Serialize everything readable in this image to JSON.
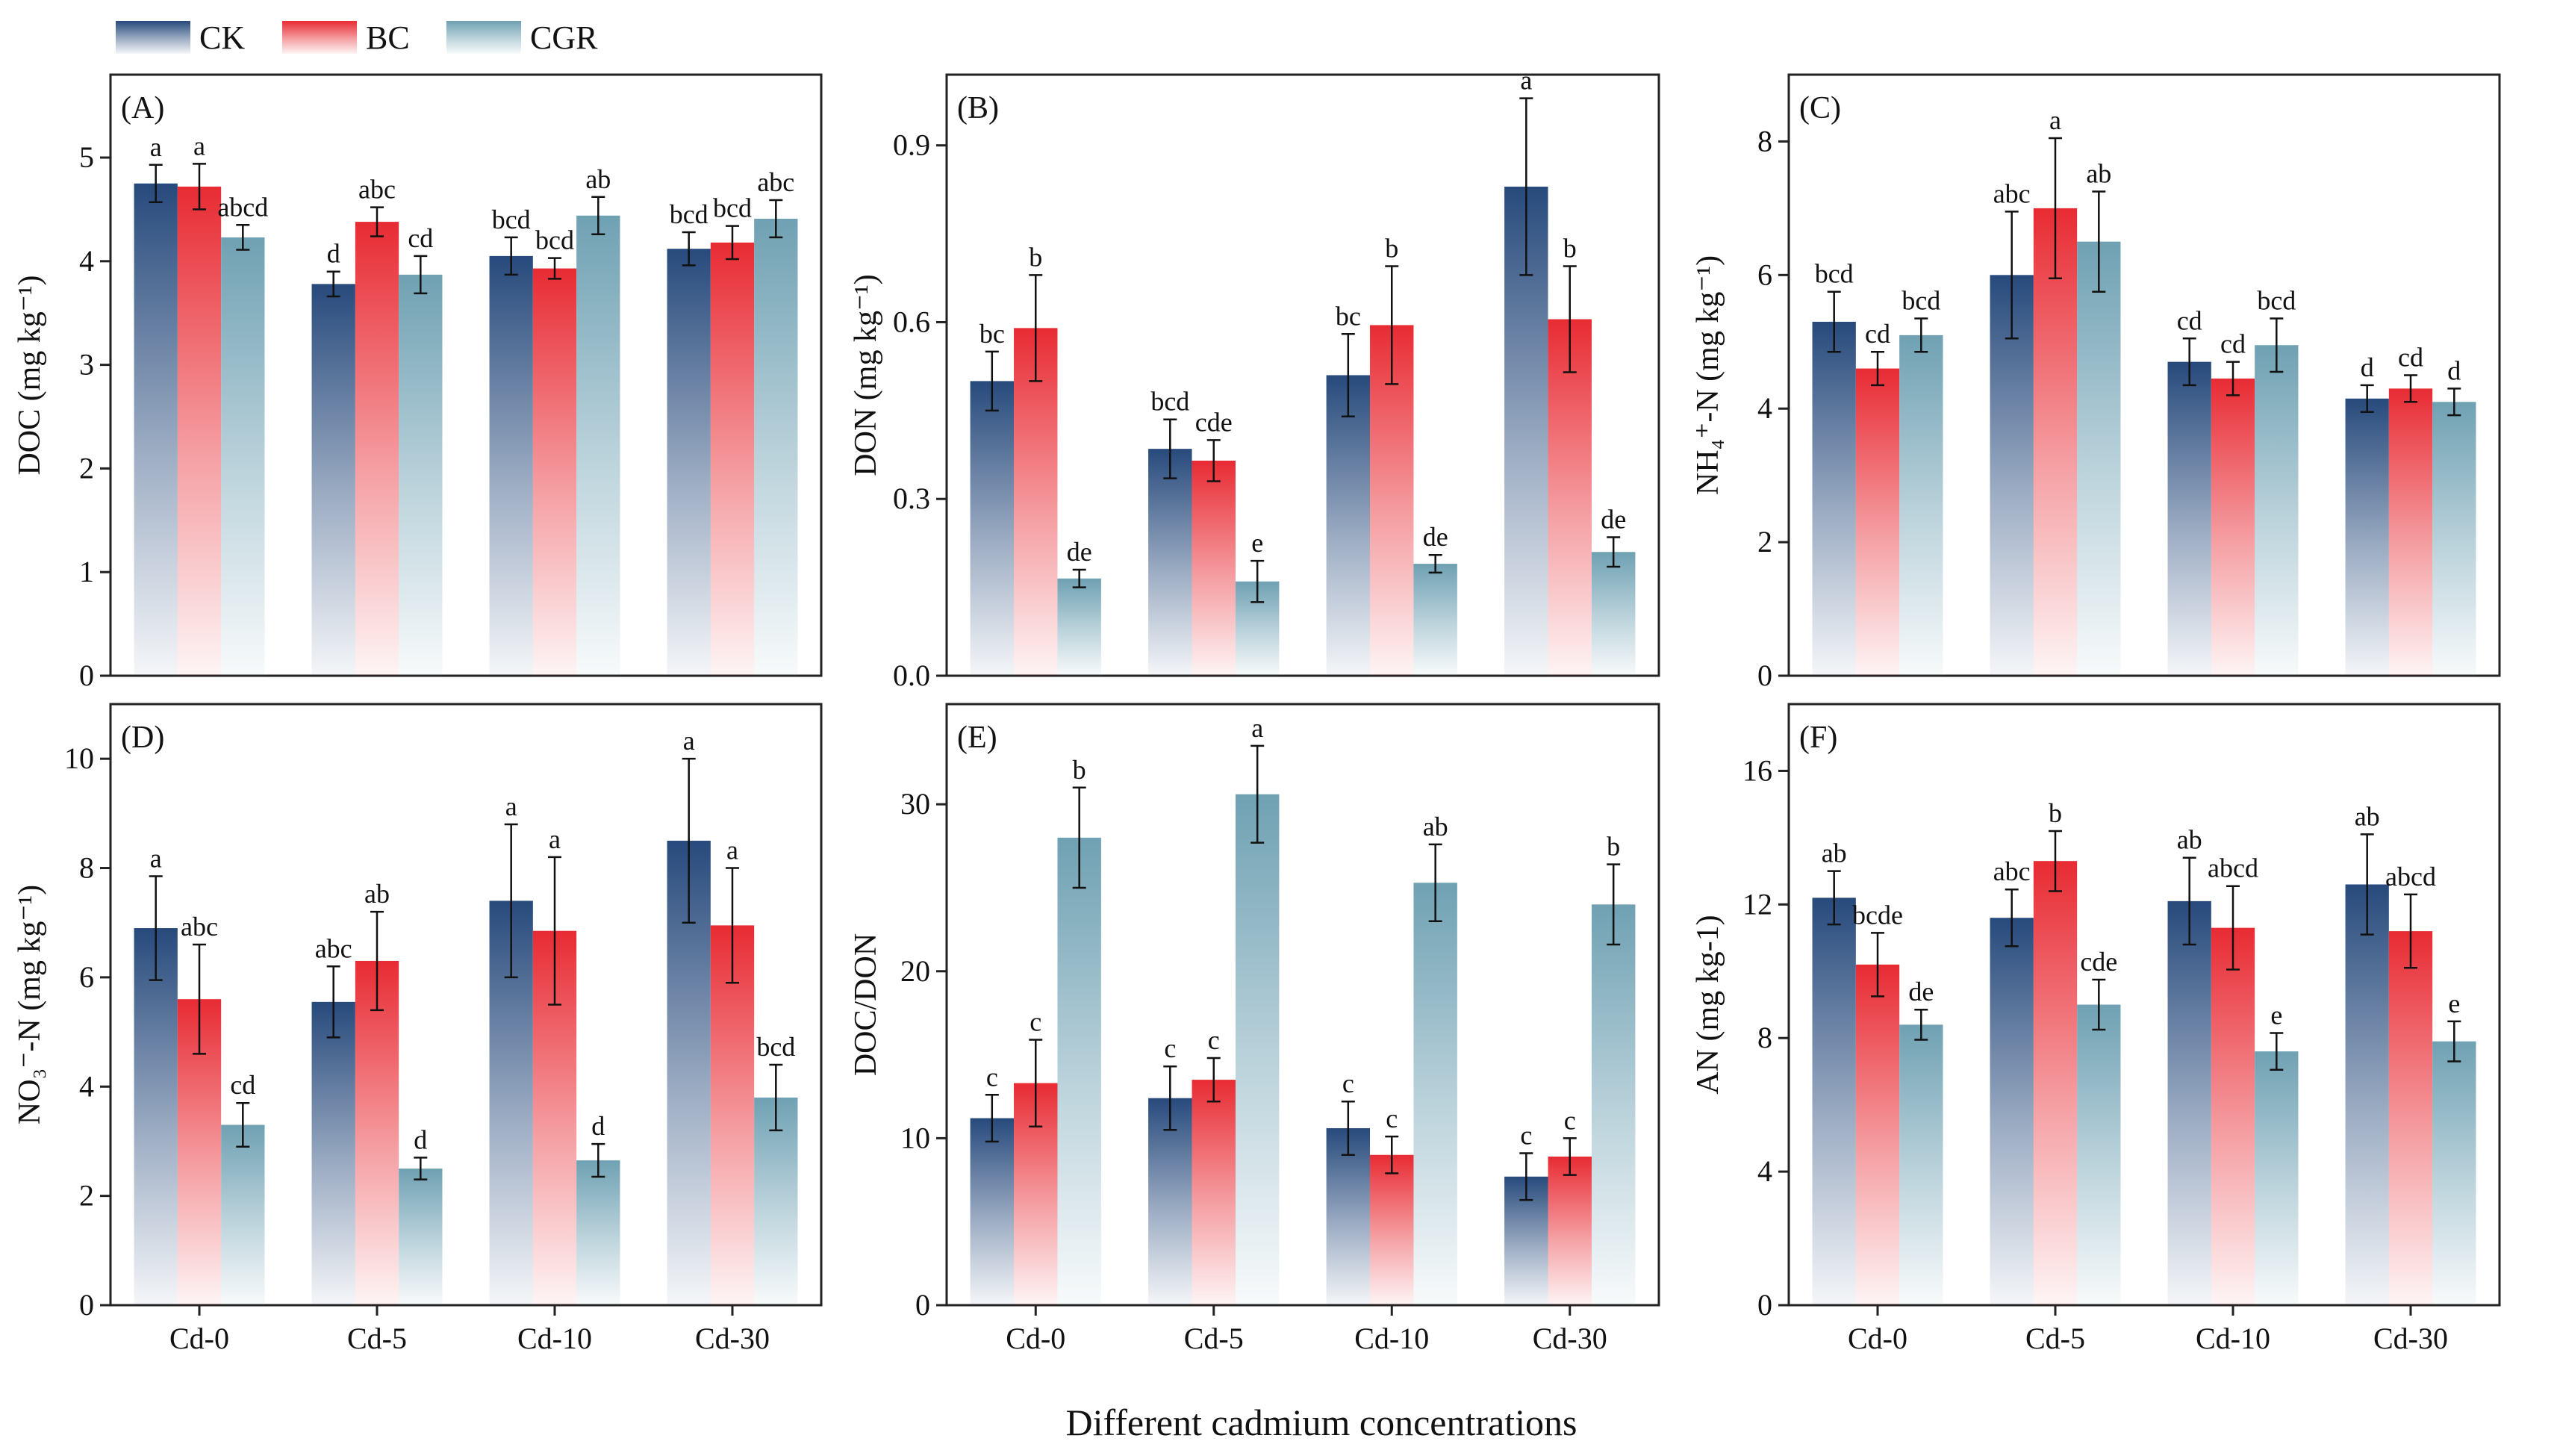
{
  "legend": [
    {
      "name": "CK",
      "color": "#274a7c"
    },
    {
      "name": "BC",
      "color": "#e82b33"
    },
    {
      "name": "CGR",
      "color": "#6fa1b3"
    }
  ],
  "xlabel": "Different cadmium concentrations",
  "chart_data": [
    {
      "type": "bar",
      "panel": "(A)",
      "ylabel": "DOC (mg kg⁻¹)",
      "categories": [
        "Cd-0",
        "Cd-5",
        "Cd-10",
        "Cd-30"
      ],
      "ylim": [
        0,
        5.8
      ],
      "yticks": [
        0,
        1,
        2,
        3,
        4,
        5
      ],
      "yticklabels": [
        "0",
        "1",
        "2",
        "3",
        "4",
        "5"
      ],
      "series": [
        {
          "name": "CK",
          "values": [
            4.75,
            3.78,
            4.05,
            4.12
          ],
          "errors": [
            0.18,
            0.12,
            0.18,
            0.16
          ],
          "letters": [
            "a",
            "d",
            "bcd",
            "bcd"
          ]
        },
        {
          "name": "BC",
          "values": [
            4.72,
            4.38,
            3.93,
            4.18
          ],
          "errors": [
            0.22,
            0.14,
            0.1,
            0.16
          ],
          "letters": [
            "a",
            "abc",
            "bcd",
            "bcd"
          ]
        },
        {
          "name": "CGR",
          "values": [
            4.23,
            3.87,
            4.44,
            4.41
          ],
          "errors": [
            0.12,
            0.18,
            0.18,
            0.18
          ],
          "letters": [
            "abcd",
            "cd",
            "ab",
            "abc"
          ]
        }
      ]
    },
    {
      "type": "bar",
      "panel": "(B)",
      "ylabel": "DON (mg kg⁻¹)",
      "categories": [
        "Cd-0",
        "Cd-5",
        "Cd-10",
        "Cd-30"
      ],
      "ylim": [
        0,
        1.02
      ],
      "yticks": [
        0,
        0.3,
        0.6,
        0.9
      ],
      "yticklabels": [
        "0.0",
        "0.3",
        "0.6",
        "0.9"
      ],
      "series": [
        {
          "name": "CK",
          "values": [
            0.5,
            0.385,
            0.51,
            0.83
          ],
          "errors": [
            0.05,
            0.05,
            0.07,
            0.15
          ],
          "letters": [
            "bc",
            "bcd",
            "bc",
            "a"
          ]
        },
        {
          "name": "BC",
          "values": [
            0.59,
            0.365,
            0.595,
            0.605
          ],
          "errors": [
            0.09,
            0.035,
            0.1,
            0.09
          ],
          "letters": [
            "b",
            "cde",
            "b",
            "b"
          ]
        },
        {
          "name": "CGR",
          "values": [
            0.165,
            0.16,
            0.19,
            0.21
          ],
          "errors": [
            0.015,
            0.035,
            0.015,
            0.025
          ],
          "letters": [
            "de",
            "e",
            "de",
            "de"
          ]
        }
      ]
    },
    {
      "type": "bar",
      "panel": "(C)",
      "ylabel": "NH₄⁺-N (mg kg⁻¹)",
      "categories": [
        "Cd-0",
        "Cd-5",
        "Cd-10",
        "Cd-30"
      ],
      "ylim": [
        0,
        9.0
      ],
      "yticks": [
        0,
        2,
        4,
        6,
        8
      ],
      "yticklabels": [
        "0",
        "2",
        "4",
        "6",
        "8"
      ],
      "series": [
        {
          "name": "CK",
          "values": [
            5.3,
            6.0,
            4.7,
            4.15
          ],
          "errors": [
            0.45,
            0.95,
            0.35,
            0.2
          ],
          "letters": [
            "bcd",
            "abc",
            "cd",
            "d"
          ]
        },
        {
          "name": "BC",
          "values": [
            4.6,
            7.0,
            4.45,
            4.3
          ],
          "errors": [
            0.25,
            1.05,
            0.25,
            0.2
          ],
          "letters": [
            "cd",
            "a",
            "cd",
            "cd"
          ]
        },
        {
          "name": "CGR",
          "values": [
            5.1,
            6.5,
            4.95,
            4.1
          ],
          "errors": [
            0.25,
            0.75,
            0.4,
            0.2
          ],
          "letters": [
            "bcd",
            "ab",
            "bcd",
            "d"
          ]
        }
      ]
    },
    {
      "type": "bar",
      "panel": "(D)",
      "ylabel": "NO₃⁻-N (mg kg⁻¹)",
      "categories": [
        "Cd-0",
        "Cd-5",
        "Cd-10",
        "Cd-30"
      ],
      "ylim": [
        0,
        11.0
      ],
      "yticks": [
        0,
        2,
        4,
        6,
        8,
        10
      ],
      "yticklabels": [
        "0",
        "2",
        "4",
        "6",
        "8",
        "10"
      ],
      "series": [
        {
          "name": "CK",
          "values": [
            6.9,
            5.55,
            7.4,
            8.5
          ],
          "errors": [
            0.95,
            0.65,
            1.4,
            1.5
          ],
          "letters": [
            "a",
            "abc",
            "a",
            "a"
          ]
        },
        {
          "name": "BC",
          "values": [
            5.6,
            6.3,
            6.85,
            6.95
          ],
          "errors": [
            1.0,
            0.9,
            1.35,
            1.05
          ],
          "letters": [
            "abc",
            "ab",
            "a",
            "a"
          ]
        },
        {
          "name": "CGR",
          "values": [
            3.3,
            2.5,
            2.65,
            3.8
          ],
          "errors": [
            0.4,
            0.2,
            0.3,
            0.6
          ],
          "letters": [
            "cd",
            "d",
            "d",
            "bcd"
          ]
        }
      ]
    },
    {
      "type": "bar",
      "panel": "(E)",
      "ylabel": "DOC/DON",
      "categories": [
        "Cd-0",
        "Cd-5",
        "Cd-10",
        "Cd-30"
      ],
      "ylim": [
        0,
        36.0
      ],
      "yticks": [
        0,
        10,
        20,
        30
      ],
      "yticklabels": [
        "0",
        "10",
        "20",
        "30"
      ],
      "series": [
        {
          "name": "CK",
          "values": [
            11.2,
            12.4,
            10.6,
            7.7
          ],
          "errors": [
            1.4,
            1.9,
            1.6,
            1.4
          ],
          "letters": [
            "c",
            "c",
            "c",
            "c"
          ]
        },
        {
          "name": "BC",
          "values": [
            13.3,
            13.5,
            9.0,
            8.9
          ],
          "errors": [
            2.6,
            1.3,
            1.1,
            1.1
          ],
          "letters": [
            "c",
            "c",
            "c",
            "c"
          ]
        },
        {
          "name": "CGR",
          "values": [
            28.0,
            30.6,
            25.3,
            24.0
          ],
          "errors": [
            3.0,
            2.9,
            2.3,
            2.4
          ],
          "letters": [
            "b",
            "a",
            "ab",
            "b"
          ]
        }
      ]
    },
    {
      "type": "bar",
      "panel": "(F)",
      "ylabel": "AN  (mg kg-1)",
      "categories": [
        "Cd-0",
        "Cd-5",
        "Cd-10",
        "Cd-30"
      ],
      "ylim": [
        0,
        18.0
      ],
      "yticks": [
        0,
        4,
        8,
        12,
        16
      ],
      "yticklabels": [
        "0",
        "4",
        "8",
        "12",
        "16"
      ],
      "series": [
        {
          "name": "CK",
          "values": [
            12.2,
            11.6,
            12.1,
            12.6
          ],
          "errors": [
            0.8,
            0.85,
            1.3,
            1.5
          ],
          "letters": [
            "ab",
            "abc",
            "ab",
            "ab"
          ]
        },
        {
          "name": "BC",
          "values": [
            10.2,
            13.3,
            11.3,
            11.2
          ],
          "errors": [
            0.95,
            0.9,
            1.25,
            1.1
          ],
          "letters": [
            "bcde",
            "b",
            "abcd",
            "abcd"
          ]
        },
        {
          "name": "CGR",
          "values": [
            8.4,
            9.0,
            7.6,
            7.9
          ],
          "errors": [
            0.45,
            0.75,
            0.55,
            0.6
          ],
          "letters": [
            "de",
            "cde",
            "e",
            "e"
          ]
        }
      ]
    }
  ]
}
